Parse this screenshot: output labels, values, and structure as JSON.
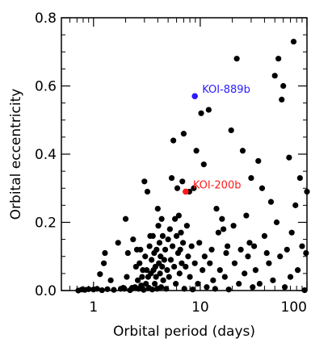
{
  "chart_data": {
    "type": "scatter",
    "title": "",
    "xlabel": "Orbital period (days)",
    "ylabel": "Orbital eccentricity",
    "x_scale": "log",
    "xlim": [
      0.5,
      100
    ],
    "ylim": [
      0,
      0.8
    ],
    "x_ticks": [
      {
        "value": 1,
        "label": "1"
      },
      {
        "value": 10,
        "label": "10"
      },
      {
        "value": 100,
        "label": "100"
      }
    ],
    "y_ticks": [
      {
        "value": 0.0,
        "label": "0.0"
      },
      {
        "value": 0.2,
        "label": "0.2"
      },
      {
        "value": 0.4,
        "label": "0.4"
      },
      {
        "value": 0.6,
        "label": "0.6"
      },
      {
        "value": 0.8,
        "label": "0.8"
      }
    ],
    "grid": false,
    "colors": {
      "points": "#000000",
      "KOI-889b": "#2b1bff",
      "KOI-200b": "#ff1a1a"
    },
    "series": [
      {
        "points": [
          [
            0.72,
            0.0
          ],
          [
            0.78,
            0.003
          ],
          [
            0.83,
            0.002
          ],
          [
            0.9,
            0.004
          ],
          [
            1.0,
            0.003
          ],
          [
            1.08,
            0.005
          ],
          [
            1.15,
            0.048
          ],
          [
            1.2,
            0.001
          ],
          [
            1.25,
            0.08
          ],
          [
            1.28,
            0.11
          ],
          [
            1.35,
            0.004
          ],
          [
            1.45,
            0.03
          ],
          [
            1.55,
            0.002
          ],
          [
            1.7,
            0.14
          ],
          [
            1.8,
            0.005
          ],
          [
            1.9,
            0.008
          ],
          [
            1.95,
            0.005
          ],
          [
            2.0,
            0.21
          ],
          [
            2.05,
            0.04
          ],
          [
            2.1,
            0.11
          ],
          [
            2.2,
            0.001
          ],
          [
            2.3,
            0.008
          ],
          [
            2.35,
            0.15
          ],
          [
            2.45,
            0.01
          ],
          [
            2.5,
            0.07
          ],
          [
            2.55,
            0.12
          ],
          [
            2.6,
            0.03
          ],
          [
            2.65,
            0.005
          ],
          [
            2.7,
            0.08
          ],
          [
            2.75,
            0.12
          ],
          [
            2.8,
            0.015
          ],
          [
            2.85,
            0.04
          ],
          [
            2.9,
            0.06
          ],
          [
            2.95,
            0.002
          ],
          [
            3.0,
            0.32
          ],
          [
            3.05,
            0.1
          ],
          [
            3.1,
            0.02
          ],
          [
            3.15,
            0.06
          ],
          [
            3.2,
            0.29
          ],
          [
            3.25,
            0.04
          ],
          [
            3.3,
            0.008
          ],
          [
            3.35,
            0.13
          ],
          [
            3.4,
            0.16
          ],
          [
            3.45,
            0.05
          ],
          [
            3.5,
            0.09
          ],
          [
            3.55,
            0.003
          ],
          [
            3.6,
            0.16
          ],
          [
            3.65,
            0.06
          ],
          [
            3.7,
            0.11
          ],
          [
            3.75,
            0.02
          ],
          [
            3.8,
            0.07
          ],
          [
            3.85,
            0.04
          ],
          [
            3.9,
            0.12
          ],
          [
            3.95,
            0.005
          ],
          [
            4.0,
            0.24
          ],
          [
            4.05,
            0.19
          ],
          [
            4.1,
            0.08
          ],
          [
            4.15,
            0.14
          ],
          [
            4.2,
            0.05
          ],
          [
            4.25,
            0.1
          ],
          [
            4.3,
            0.01
          ],
          [
            4.35,
            0.21
          ],
          [
            4.4,
            0.07
          ],
          [
            4.45,
            0.16
          ],
          [
            4.5,
            0.03
          ],
          [
            4.6,
            0.09
          ],
          [
            4.7,
            0.12
          ],
          [
            4.8,
            0.005
          ],
          [
            4.9,
            0.06
          ],
          [
            5.0,
            0.15
          ],
          [
            5.1,
            0.04
          ],
          [
            5.2,
            0.18
          ],
          [
            5.3,
            0.09
          ],
          [
            5.4,
            0.33
          ],
          [
            5.5,
            0.13
          ],
          [
            5.6,
            0.44
          ],
          [
            5.7,
            0.07
          ],
          [
            5.8,
            0.21
          ],
          [
            5.9,
            0.02
          ],
          [
            6.0,
            0.16
          ],
          [
            6.1,
            0.3
          ],
          [
            6.2,
            0.11
          ],
          [
            6.3,
            0.22
          ],
          [
            6.4,
            0.05
          ],
          [
            6.5,
            0.12
          ],
          [
            6.6,
            0.17
          ],
          [
            6.7,
            0.08
          ],
          [
            6.8,
            0.32
          ],
          [
            6.9,
            0.14
          ],
          [
            7.0,
            0.46
          ],
          [
            7.1,
            0.005
          ],
          [
            7.3,
            0.07
          ],
          [
            7.5,
            0.19
          ],
          [
            7.7,
            0.1
          ],
          [
            7.9,
            0.29
          ],
          [
            8.0,
            0.04
          ],
          [
            8.3,
            0.13
          ],
          [
            8.5,
            0.003
          ],
          [
            8.7,
            0.3
          ],
          [
            8.9,
            0.08
          ],
          [
            9.2,
            0.41
          ],
          [
            9.5,
            0.02
          ],
          [
            9.8,
            0.14
          ],
          [
            10.2,
            0.52
          ],
          [
            10.5,
            0.06
          ],
          [
            10.8,
            0.37
          ],
          [
            11.0,
            0.1
          ],
          [
            11.5,
            0.01
          ],
          [
            12.0,
            0.53
          ],
          [
            12.3,
            0.08
          ],
          [
            12.8,
            0.12
          ],
          [
            13.2,
            0.03
          ],
          [
            13.8,
            0.005
          ],
          [
            14.2,
            0.24
          ],
          [
            14.8,
            0.17
          ],
          [
            15.3,
            0.06
          ],
          [
            16.0,
            0.21
          ],
          [
            16.5,
            0.18
          ],
          [
            17.0,
            0.04
          ],
          [
            17.5,
            0.11
          ],
          [
            18.0,
            0.13
          ],
          [
            18.5,
            0.003
          ],
          [
            19.5,
            0.47
          ],
          [
            20.5,
            0.19
          ],
          [
            21.0,
            0.08
          ],
          [
            22.0,
            0.68
          ],
          [
            23.0,
            0.02
          ],
          [
            24.0,
            0.12
          ],
          [
            25.0,
            0.41
          ],
          [
            26.0,
            0.05
          ],
          [
            27.0,
            0.22
          ],
          [
            28.0,
            0.1
          ],
          [
            29.0,
            0.14
          ],
          [
            30.0,
            0.33
          ],
          [
            31.0,
            0.01
          ],
          [
            32.0,
            0.13
          ],
          [
            33.0,
            0.06
          ],
          [
            35.0,
            0.38
          ],
          [
            36.0,
            0.02
          ],
          [
            38.0,
            0.3
          ],
          [
            40.0,
            0.16
          ],
          [
            42.0,
            0.11
          ],
          [
            44.0,
            0.08
          ],
          [
            46.0,
            0.26
          ],
          [
            48.0,
            0.03
          ],
          [
            50.0,
            0.63
          ],
          [
            52.0,
            0.2
          ],
          [
            54.0,
            0.68
          ],
          [
            56.0,
            0.1
          ],
          [
            58.0,
            0.56
          ],
          [
            60.0,
            0.6
          ],
          [
            62.0,
            0.01
          ],
          [
            65.0,
            0.12
          ],
          [
            68.0,
            0.39
          ],
          [
            70.0,
            0.04
          ],
          [
            72.0,
            0.17
          ],
          [
            75.0,
            0.73
          ],
          [
            78.0,
            0.25
          ],
          [
            82.0,
            0.06
          ],
          [
            86.0,
            0.33
          ],
          [
            90.0,
            0.13
          ],
          [
            95.0,
            0.001
          ],
          [
            98.0,
            0.11
          ],
          [
            100.0,
            0.29
          ]
        ]
      }
    ],
    "annotations": [
      {
        "label": "KOI-889b",
        "x": 8.9,
        "y": 0.57,
        "color": "#2b1bff"
      },
      {
        "label": "KOI-200b",
        "x": 7.3,
        "y": 0.29,
        "color": "#ff1a1a"
      }
    ]
  }
}
